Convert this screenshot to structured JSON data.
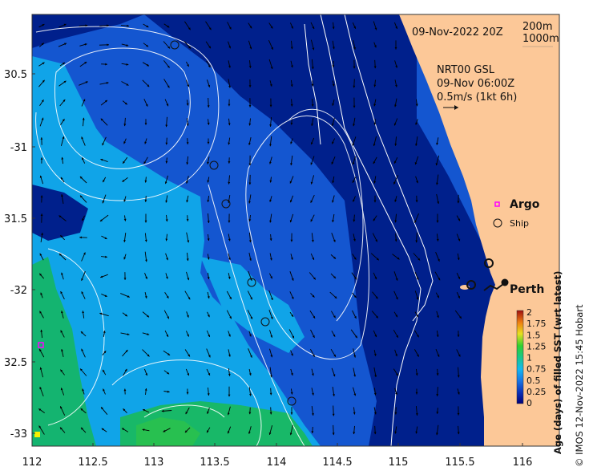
{
  "map": {
    "datetime": "09-Nov-2022 20Z",
    "depth_contours": [
      "200m",
      "1000m"
    ],
    "current_product": "NRT00 GSL",
    "current_time": "09-Nov 06:00Z",
    "current_scale": "0.5m/s (1kt 6h)",
    "legend_argo": "Argo",
    "legend_ship": "Ship",
    "city": "Perth",
    "lon_ticks": [
      "112",
      "112.5",
      "113",
      "113.5",
      "114",
      "114.5",
      "115",
      "115.5",
      "116"
    ],
    "lat_ticks": [
      "30.5",
      "-31",
      "31.5",
      "-32",
      "32.5",
      "-33"
    ],
    "colorbar": {
      "title": "Age (days) of filled SST (wrt latest)",
      "ticks": [
        "2",
        "1.75",
        "1.5",
        "1.25",
        "1",
        "0.75",
        "0.5",
        "0.25",
        "0"
      ]
    },
    "credit": "© IMOS 12-Nov-2022 15:45 Hobart",
    "colors": {
      "land": "#fcc898",
      "deep": "#00208c",
      "mid": "#1456d0",
      "light": "#10a4e8",
      "green": "#14b470",
      "accent": "#ff00ff"
    }
  }
}
